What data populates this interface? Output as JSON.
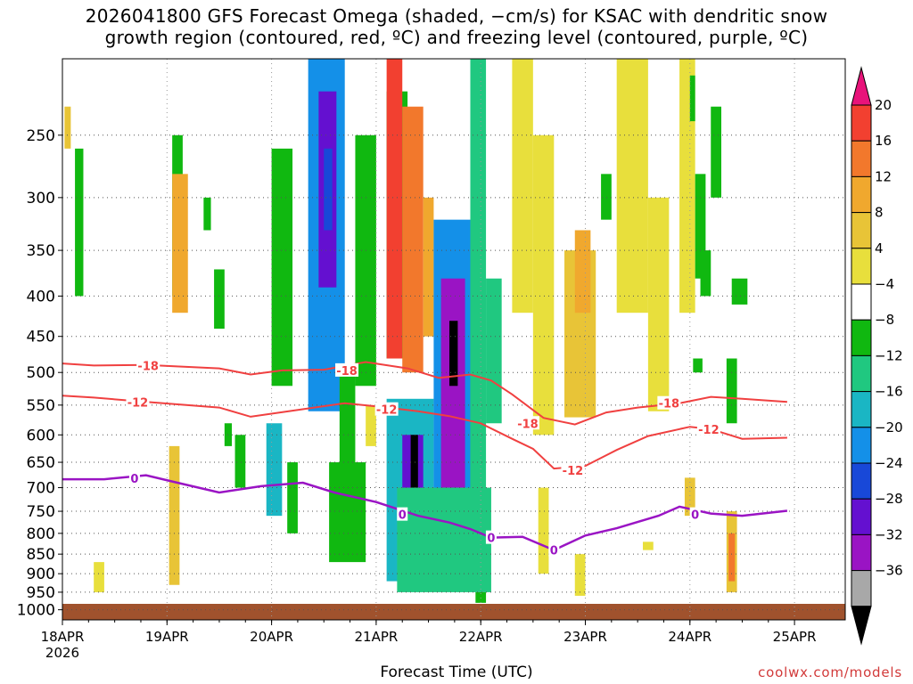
{
  "chart_data": {
    "type": "heatmap",
    "title_line1": "2026041800 GFS Forecast Omega (shaded, −cm/s) for KSAC with dendritic snow",
    "title_line2": "growth region (contoured, red, ºC) and freezing level (contoured, purple, ºC)",
    "xlabel": "Forecast Time (UTC)",
    "credit": "coolwx.com/models",
    "x_start_label": "18APR",
    "x_start_year": "2026",
    "x_tick_labels": [
      "18APR",
      "19APR",
      "20APR",
      "21APR",
      "22APR",
      "23APR",
      "24APR",
      "25APR"
    ],
    "x_range_days": [
      0,
      6.93
    ],
    "y_ticks": [
      250,
      300,
      350,
      400,
      450,
      500,
      550,
      600,
      650,
      700,
      750,
      800,
      850,
      900,
      950,
      1000
    ],
    "y_range_hpa": [
      1030,
      200
    ],
    "colorbar_labels": [
      "20",
      "16",
      "12",
      "8",
      "4",
      "−4",
      "−8",
      "−12",
      "−16",
      "−20",
      "−24",
      "−28",
      "−32",
      "−36"
    ],
    "colorbar_colors": [
      "#e8137a",
      "#f24030",
      "#f2782c",
      "#f0a82e",
      "#e8c437",
      "#e8df3c",
      "#ffffff",
      "#10b810",
      "#20c880",
      "#1ab6c4",
      "#1490e8",
      "#1848d8",
      "#6410d0",
      "#9a14c4",
      "#a8a8a8",
      "#000000"
    ],
    "contours_red": [
      {
        "level": "-18",
        "points": [
          [
            0,
            487
          ],
          [
            0.3,
            490
          ],
          [
            0.8,
            489
          ],
          [
            1.5,
            494
          ],
          [
            1.8,
            503
          ],
          [
            2.1,
            497
          ],
          [
            2.5,
            496
          ],
          [
            2.9,
            485
          ],
          [
            3.3,
            494
          ],
          [
            3.6,
            508
          ],
          [
            3.9,
            503
          ],
          [
            4.1,
            512
          ],
          [
            4.3,
            533
          ],
          [
            4.6,
            571
          ],
          [
            4.9,
            582
          ],
          [
            5.2,
            562
          ],
          [
            5.5,
            554
          ],
          [
            5.9,
            547
          ],
          [
            6.2,
            537
          ],
          [
            6.5,
            540
          ],
          [
            6.93,
            545
          ]
        ]
      },
      {
        "level": "-12",
        "points": [
          [
            0,
            535
          ],
          [
            0.3,
            538
          ],
          [
            0.8,
            545
          ],
          [
            1.5,
            554
          ],
          [
            1.8,
            569
          ],
          [
            2.2,
            559
          ],
          [
            2.7,
            547
          ],
          [
            3.0,
            552
          ],
          [
            3.4,
            560
          ],
          [
            3.7,
            568
          ],
          [
            4.0,
            580
          ],
          [
            4.3,
            607
          ],
          [
            4.5,
            625
          ],
          [
            4.7,
            662
          ],
          [
            5.0,
            657
          ],
          [
            5.3,
            627
          ],
          [
            5.6,
            602
          ],
          [
            6.0,
            586
          ],
          [
            6.2,
            590
          ],
          [
            6.5,
            607
          ],
          [
            6.93,
            605
          ]
        ]
      }
    ],
    "contours_purple": [
      {
        "level": "0",
        "points": [
          [
            0,
            683
          ],
          [
            0.4,
            683
          ],
          [
            0.8,
            675
          ],
          [
            1.1,
            690
          ],
          [
            1.5,
            710
          ],
          [
            1.9,
            697
          ],
          [
            2.3,
            690
          ],
          [
            2.6,
            710
          ],
          [
            3.0,
            730
          ],
          [
            3.4,
            760
          ],
          [
            3.7,
            775
          ],
          [
            3.9,
            790
          ],
          [
            4.1,
            810
          ],
          [
            4.4,
            808
          ],
          [
            4.7,
            840
          ],
          [
            5.0,
            805
          ],
          [
            5.3,
            788
          ],
          [
            5.7,
            760
          ],
          [
            5.9,
            740
          ],
          [
            6.2,
            755
          ],
          [
            6.5,
            760
          ],
          [
            6.93,
            749
          ]
        ]
      }
    ],
    "contour_labels": [
      {
        "text": "-18",
        "x": 0.82,
        "p": 490
      },
      {
        "text": "-18",
        "x": 2.72,
        "p": 497
      },
      {
        "text": "-18",
        "x": 4.45,
        "p": 580
      },
      {
        "text": "-18",
        "x": 5.8,
        "p": 547
      },
      {
        "text": "-12",
        "x": 0.72,
        "p": 545
      },
      {
        "text": "-12",
        "x": 3.1,
        "p": 557
      },
      {
        "text": "-12",
        "x": 4.88,
        "p": 665
      },
      {
        "text": "-12",
        "x": 6.18,
        "p": 590
      },
      {
        "text": "0",
        "x": 0.69,
        "p": 681
      },
      {
        "text": "0",
        "x": 3.25,
        "p": 757
      },
      {
        "text": "0",
        "x": 4.1,
        "p": 810
      },
      {
        "text": "0",
        "x": 4.7,
        "p": 840
      },
      {
        "text": "0",
        "x": 6.05,
        "p": 757
      }
    ],
    "shaded_cells": [
      {
        "x0": 2.35,
        "x1": 2.7,
        "p0": 200,
        "p1": 560,
        "v": -18
      },
      {
        "x0": 2.45,
        "x1": 2.62,
        "p0": 220,
        "p1": 390,
        "v": -26
      },
      {
        "x0": 2.5,
        "x1": 2.58,
        "p0": 260,
        "p1": 330,
        "v": -22
      },
      {
        "x0": 2.0,
        "x1": 2.2,
        "p0": 260,
        "p1": 520,
        "v": -7
      },
      {
        "x0": 1.05,
        "x1": 1.15,
        "p0": 250,
        "p1": 400,
        "v": -6
      },
      {
        "x0": 2.8,
        "x1": 3.0,
        "p0": 250,
        "p1": 520,
        "v": -7
      },
      {
        "x0": 2.65,
        "x1": 2.8,
        "p0": 500,
        "p1": 760,
        "v": -7
      },
      {
        "x0": 3.1,
        "x1": 3.3,
        "p0": 220,
        "p1": 480,
        "v": -7
      },
      {
        "x0": 3.1,
        "x1": 3.25,
        "p0": 200,
        "p1": 480,
        "v": 19
      },
      {
        "x0": 3.25,
        "x1": 3.45,
        "p0": 230,
        "p1": 500,
        "v": 12
      },
      {
        "x0": 3.45,
        "x1": 3.55,
        "p0": 300,
        "p1": 450,
        "v": 8
      },
      {
        "x0": 1.02,
        "x1": 1.12,
        "p0": 620,
        "p1": 930,
        "v": 6
      },
      {
        "x0": 1.05,
        "x1": 1.2,
        "p0": 280,
        "p1": 420,
        "v": 10
      },
      {
        "x0": 1.95,
        "x1": 2.1,
        "p0": 580,
        "p1": 760,
        "v": -12
      },
      {
        "x0": 3.1,
        "x1": 3.55,
        "p0": 540,
        "p1": 920,
        "v": -13
      },
      {
        "x0": 3.25,
        "x1": 3.45,
        "p0": 600,
        "p1": 760,
        "v": -25
      },
      {
        "x0": 3.33,
        "x1": 3.4,
        "p0": 600,
        "p1": 700,
        "v": -40
      },
      {
        "x0": 3.55,
        "x1": 3.95,
        "p0": 320,
        "p1": 780,
        "v": -16
      },
      {
        "x0": 3.62,
        "x1": 3.85,
        "p0": 380,
        "p1": 700,
        "v": -28
      },
      {
        "x0": 3.7,
        "x1": 3.78,
        "p0": 430,
        "p1": 520,
        "v": -40
      },
      {
        "x0": 3.9,
        "x1": 4.05,
        "p0": 200,
        "p1": 900,
        "v": -8
      },
      {
        "x0": 4.05,
        "x1": 4.2,
        "p0": 380,
        "p1": 580,
        "v": -10
      },
      {
        "x0": 3.2,
        "x1": 4.1,
        "p0": 700,
        "p1": 950,
        "v": -10
      },
      {
        "x0": 2.55,
        "x1": 2.9,
        "p0": 650,
        "p1": 870,
        "v": -7
      },
      {
        "x0": 4.3,
        "x1": 4.5,
        "p0": 200,
        "p1": 420,
        "v": 5
      },
      {
        "x0": 4.5,
        "x1": 4.7,
        "p0": 250,
        "p1": 600,
        "v": 5
      },
      {
        "x0": 4.8,
        "x1": 5.1,
        "p0": 350,
        "p1": 570,
        "v": 6
      },
      {
        "x0": 4.9,
        "x1": 5.05,
        "p0": 330,
        "p1": 420,
        "v": 9
      },
      {
        "x0": 5.3,
        "x1": 5.6,
        "p0": 200,
        "p1": 420,
        "v": 5
      },
      {
        "x0": 5.6,
        "x1": 5.8,
        "p0": 300,
        "p1": 560,
        "v": 5
      },
      {
        "x0": 5.9,
        "x1": 6.05,
        "p0": 200,
        "p1": 420,
        "v": 5
      },
      {
        "x0": 6.05,
        "x1": 6.15,
        "p0": 280,
        "p1": 380,
        "v": -6
      },
      {
        "x0": 6.2,
        "x1": 6.3,
        "p0": 230,
        "p1": 300,
        "v": -6
      },
      {
        "x0": 6.0,
        "x1": 6.05,
        "p0": 210,
        "p1": 240,
        "v": -6
      },
      {
        "x0": 5.15,
        "x1": 5.25,
        "p0": 280,
        "p1": 320,
        "v": -6
      },
      {
        "x0": 6.1,
        "x1": 6.2,
        "p0": 350,
        "p1": 400,
        "v": -6
      },
      {
        "x0": 6.03,
        "x1": 6.12,
        "p0": 480,
        "p1": 500,
        "v": -6
      },
      {
        "x0": 6.35,
        "x1": 6.45,
        "p0": 480,
        "p1": 580,
        "v": -7
      },
      {
        "x0": 6.35,
        "x1": 6.45,
        "p0": 750,
        "p1": 950,
        "v": 6
      },
      {
        "x0": 6.37,
        "x1": 6.43,
        "p0": 800,
        "p1": 920,
        "v": 12
      },
      {
        "x0": 6.4,
        "x1": 6.55,
        "p0": 380,
        "p1": 410,
        "v": -7
      },
      {
        "x0": 0.12,
        "x1": 0.2,
        "p0": 260,
        "p1": 400,
        "v": -6
      },
      {
        "x0": 0.02,
        "x1": 0.08,
        "p0": 230,
        "p1": 260,
        "v": 6
      },
      {
        "x0": 0.3,
        "x1": 0.4,
        "p0": 870,
        "p1": 950,
        "v": 5
      },
      {
        "x0": 5.55,
        "x1": 5.65,
        "p0": 820,
        "p1": 840,
        "v": 5
      },
      {
        "x0": 5.95,
        "x1": 6.05,
        "p0": 680,
        "p1": 760,
        "v": 6
      },
      {
        "x0": 4.55,
        "x1": 4.65,
        "p0": 700,
        "p1": 900,
        "v": 5
      },
      {
        "x0": 4.9,
        "x1": 5.0,
        "p0": 850,
        "p1": 960,
        "v": 5
      },
      {
        "x0": 1.45,
        "x1": 1.55,
        "p0": 370,
        "p1": 440,
        "v": -6
      },
      {
        "x0": 1.35,
        "x1": 1.42,
        "p0": 300,
        "p1": 330,
        "v": -6
      },
      {
        "x0": 1.55,
        "x1": 1.62,
        "p0": 580,
        "p1": 620,
        "v": -6
      },
      {
        "x0": 1.65,
        "x1": 1.75,
        "p0": 600,
        "p1": 700,
        "v": -6
      },
      {
        "x0": 2.15,
        "x1": 2.25,
        "p0": 650,
        "p1": 800,
        "v": -7
      },
      {
        "x0": 2.9,
        "x1": 3.0,
        "p0": 550,
        "p1": 620,
        "v": 5
      },
      {
        "x0": 3.95,
        "x1": 4.05,
        "p0": 950,
        "p1": 980,
        "v": -6
      }
    ]
  }
}
